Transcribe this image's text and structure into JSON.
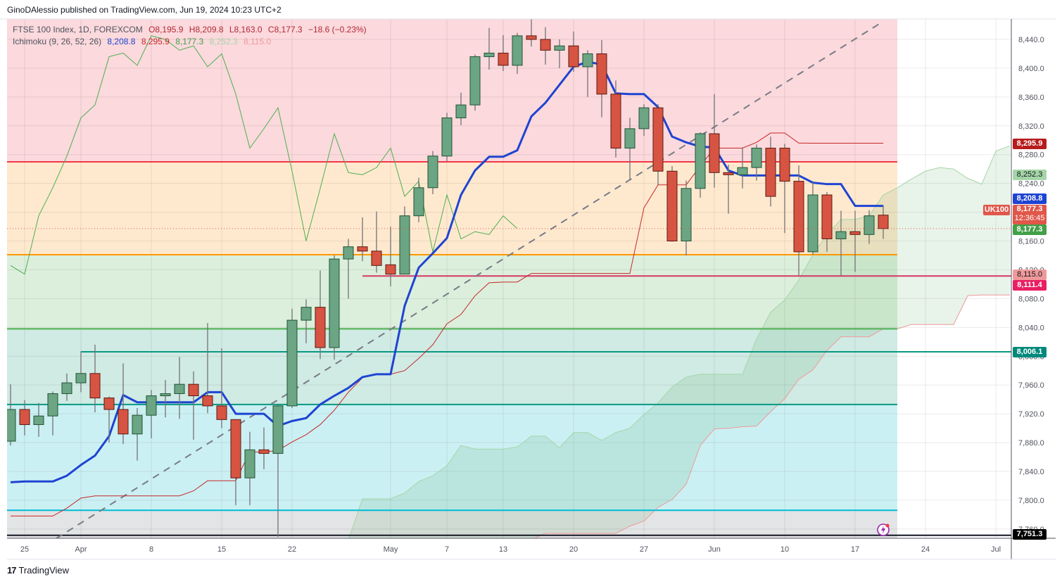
{
  "header": {
    "publisher_line": "GinoDAlessio published on TradingView.com, Jun 19, 2024 10:23 UTC+2"
  },
  "legend": {
    "symbol": "FTSE 100 Index, 1D, FOREXCOM",
    "open": "O8,195.9",
    "high": "H8,209.8",
    "low": "L8,163.0",
    "close": "C8,177.3",
    "change": "−18.6 (−0.23%)",
    "indicator": "Ichimoku (9, 26, 52, 26)",
    "values": [
      "8,208.8",
      "8,295.9",
      "8,177.3",
      "8,252.3",
      "8,115.0"
    ]
  },
  "colors": {
    "up": "#6ba583",
    "up_border": "#225437",
    "down": "#d75442",
    "down_border": "#5b1a13",
    "wick": "#737375",
    "tenkan": "#1e44d2",
    "kijun": "#c62828",
    "chikou": "#4caf50",
    "span_a": "#a5d6a7",
    "span_b": "#ef9a9a",
    "cloud": "rgba(67,160,71,0.12)"
  },
  "price_labels": {
    "kijun": "8,295.9",
    "span_a": "8,252.3",
    "tenkan": "8,208.8",
    "last": "8,177.3",
    "countdown": "12:36:45",
    "chikou": "8,177.3",
    "span_b": "8,115.0",
    "level_crimson": "8,111.4",
    "level_teal": "8,006.1",
    "level_black": "7,751.3",
    "symbol_tag": "UK100"
  },
  "footer": {
    "brand": "TradingView",
    "logo_mark": "17"
  },
  "chart_data": {
    "type": "candlestick",
    "title": "FTSE 100 Index, 1D, FOREXCOM",
    "ylim": [
      7740,
      8480
    ],
    "ohlc": [
      [
        7882,
        7961,
        7876,
        7926
      ],
      [
        7926,
        7939,
        7890,
        7905
      ],
      [
        7905,
        7935,
        7888,
        7917
      ],
      [
        7917,
        7951,
        7890,
        7948
      ],
      [
        7948,
        7976,
        7938,
        7963
      ],
      [
        7963,
        8007,
        7950,
        7976
      ],
      [
        7976,
        8016,
        7922,
        7942
      ],
      [
        7942,
        7944,
        7880,
        7926
      ],
      [
        7926,
        7990,
        7878,
        7892
      ],
      [
        7892,
        7928,
        7855,
        7918
      ],
      [
        7918,
        7953,
        7886,
        7945
      ],
      [
        7945,
        7967,
        7915,
        7948
      ],
      [
        7948,
        7999,
        7913,
        7961
      ],
      [
        7961,
        7979,
        7884,
        7945
      ],
      [
        7945,
        8046,
        7921,
        7931
      ],
      [
        7931,
        8011,
        7900,
        7912
      ],
      [
        7912,
        7912,
        7793,
        7831
      ],
      [
        7831,
        7895,
        7793,
        7870
      ],
      [
        7870,
        7901,
        7843,
        7865
      ],
      [
        7865,
        7933,
        7749,
        7931
      ],
      [
        7931,
        8066,
        7928,
        8050
      ],
      [
        8050,
        8079,
        8018,
        8068
      ],
      [
        8068,
        8119,
        7996,
        8012
      ],
      [
        8012,
        8140,
        7995,
        8135
      ],
      [
        8135,
        8163,
        8080,
        8152
      ],
      [
        8152,
        8193,
        8132,
        8146
      ],
      [
        8146,
        8201,
        8116,
        8126
      ],
      [
        8127,
        8180,
        8097,
        8114
      ],
      [
        8114,
        8208,
        8114,
        8195
      ],
      [
        8195,
        8248,
        8186,
        8234
      ],
      [
        8234,
        8285,
        8225,
        8278
      ],
      [
        8278,
        8338,
        8271,
        8331
      ],
      [
        8331,
        8366,
        8321,
        8349
      ],
      [
        8349,
        8419,
        8341,
        8416
      ],
      [
        8416,
        8456,
        8398,
        8421
      ],
      [
        8421,
        8446,
        8396,
        8404
      ],
      [
        8404,
        8449,
        8392,
        8445
      ],
      [
        8445,
        8468,
        8430,
        8440
      ],
      [
        8440,
        8457,
        8405,
        8425
      ],
      [
        8425,
        8440,
        8400,
        8431
      ],
      [
        8431,
        8451,
        8395,
        8402
      ],
      [
        8402,
        8425,
        8360,
        8420
      ],
      [
        8420,
        8439,
        8332,
        8364
      ],
      [
        8364,
        8383,
        8276,
        8289
      ],
      [
        8289,
        8331,
        8246,
        8316
      ],
      [
        8316,
        8350,
        8306,
        8345
      ],
      [
        8345,
        8350,
        8238,
        8257
      ],
      [
        8257,
        8264,
        8159,
        8160
      ],
      [
        8160,
        8244,
        8140,
        8233
      ],
      [
        8233,
        8311,
        8220,
        8309
      ],
      [
        8309,
        8364,
        8234,
        8255
      ],
      [
        8255,
        8266,
        8198,
        8252
      ],
      [
        8252,
        8290,
        8233,
        8262
      ],
      [
        8262,
        8294,
        8244,
        8289
      ],
      [
        8289,
        8305,
        8208,
        8222
      ],
      [
        8289,
        8295,
        8171,
        8243
      ],
      [
        8243,
        8265,
        8112,
        8145
      ],
      [
        8145,
        8243,
        8141,
        8224
      ],
      [
        8224,
        8228,
        8145,
        8163
      ],
      [
        8163,
        8202,
        8112,
        8173
      ],
      [
        8173,
        8202,
        8117,
        8169
      ],
      [
        8169,
        8203,
        8156,
        8195
      ],
      [
        8195.9,
        8209.8,
        8163.0,
        8177.3
      ]
    ],
    "ichimoku": {
      "displacement": 26,
      "tenkan": [
        7825,
        7826,
        7826,
        7826,
        7834,
        7849,
        7862,
        7889,
        7946,
        7936,
        7936,
        7936,
        7936,
        7936,
        7950,
        7950,
        7920,
        7920,
        7920,
        7903,
        7910,
        7914,
        7933,
        7945,
        7956,
        7971,
        7975,
        7975,
        8070,
        8123,
        8143,
        8164,
        8224,
        8258,
        8277,
        8277,
        8286,
        8333,
        8352,
        8377,
        8402,
        8409,
        8405,
        8365,
        8364,
        8364,
        8346,
        8305,
        8297,
        8291,
        8290,
        8258,
        8251,
        8251,
        8251,
        8251,
        8251,
        8241,
        8239,
        8239,
        8208.8,
        8208.8,
        8208.8
      ],
      "kijun": [
        7778,
        7778,
        7778,
        7778,
        7789,
        7803,
        7806,
        7806,
        7806,
        7806,
        7806,
        7806,
        7806,
        7813,
        7827,
        7827,
        7827,
        7867,
        7867,
        7869,
        7881,
        7891,
        7905,
        7925,
        7950,
        7970,
        7975,
        7975,
        7980,
        7997,
        8016,
        8045,
        8058,
        8084,
        8102,
        8103,
        8103,
        8115,
        8115,
        8115,
        8115,
        8115,
        8115,
        8115,
        8115,
        8206,
        8238,
        8238,
        8238,
        8264,
        8289,
        8289,
        8289,
        8297,
        8310,
        8310,
        8296,
        8295.9,
        8295.9,
        8295.9,
        8295.9,
        8295.9,
        8295.9
      ],
      "span_start_bar": 24,
      "span_a": [
        7745,
        7802,
        7802,
        7802,
        7810,
        7826,
        7834,
        7848,
        7876,
        7871,
        7871,
        7871,
        7874,
        7889,
        7889,
        7873,
        7894,
        7894,
        7883,
        7894,
        7900,
        7919,
        7935,
        7957,
        7971,
        7975,
        7975,
        7975,
        7975,
        8024,
        8061,
        8078,
        8106,
        8141,
        8169,
        8190,
        8190,
        8195,
        8224,
        8234,
        8246,
        8257,
        8262,
        8260,
        8247,
        8239,
        8285,
        8292
      ],
      "span_b": [
        7735,
        7735,
        7735,
        7735,
        7735,
        7735,
        7735,
        7735,
        7735,
        7735,
        7735,
        7735,
        7735,
        7745,
        7754,
        7754,
        7754,
        7754,
        7754,
        7754,
        7764,
        7771,
        7790,
        7801,
        7822,
        7876,
        7899,
        7900,
        7902,
        7903,
        7923,
        7941,
        7968,
        7981,
        8008,
        8027,
        8027,
        8027,
        8038,
        8038,
        8044,
        8044,
        8044,
        8044,
        8084,
        8085,
        8085,
        8085
      ]
    },
    "zones": [
      {
        "from": 8270,
        "to": 8480,
        "color": "#fbd9dd"
      },
      {
        "from": 8141,
        "to": 8270,
        "color": "#fee9cf"
      },
      {
        "from": 8038,
        "to": 8141,
        "color": "#dcefdc"
      },
      {
        "from": 7933,
        "to": 8038,
        "color": "#d0eae4"
      },
      {
        "from": 7786,
        "to": 7933,
        "color": "#cbf0f3"
      },
      {
        "from": 7735,
        "to": 7786,
        "color": "#e3e4e6"
      }
    ],
    "zones_end_bar": 63,
    "levels": [
      {
        "price": 8270,
        "color": "#f23645",
        "from_bar": -0.25,
        "to_bar": 63
      },
      {
        "price": 8141,
        "color": "#ff9800",
        "from_bar": -0.25,
        "to_bar": 63
      },
      {
        "price": 8111.4,
        "color": "#d63864",
        "from_bar": 25,
        "to_bar": 71.1
      },
      {
        "price": 8038,
        "color": "#4caf50",
        "from_bar": -0.25,
        "to_bar": 63
      },
      {
        "price": 8006.1,
        "color": "#089981",
        "from_bar": 5,
        "to_bar": 71.1
      },
      {
        "price": 7933,
        "color": "#089981",
        "from_bar": -0.25,
        "to_bar": 63
      },
      {
        "price": 7786,
        "color": "#00bcd4",
        "from_bar": -0.25,
        "to_bar": 63
      },
      {
        "price": 7751.3,
        "color": "#131722",
        "from_bar": -0.25,
        "to_bar": 71.1
      }
    ],
    "trendline": [
      {
        "bar": 3.25,
        "price": 7747
      },
      {
        "bar": 62,
        "price": 8465
      }
    ],
    "current_price": 8177.3,
    "y_ticks": [
      "8,440.0",
      "8,400.0",
      "8,360.0",
      "8,320.0",
      "8,280.0",
      "8,240.0",
      "8,200.0",
      "8,160.0",
      "8,120.0",
      "8,080.0",
      "8,040.0",
      "8,000.0",
      "7,960.0",
      "7,920.0",
      "7,880.0",
      "7,840.0",
      "7,800.0",
      "7,760.0"
    ],
    "y_tick_values": [
      8440,
      8400,
      8360,
      8320,
      8280,
      8240,
      8200,
      8160,
      8120,
      8080,
      8040,
      8000,
      7960,
      7920,
      7880,
      7840,
      7800,
      7760
    ],
    "x_labels": [
      {
        "bar": 1,
        "label": "25"
      },
      {
        "bar": 5,
        "label": "Apr"
      },
      {
        "bar": 10,
        "label": "8"
      },
      {
        "bar": 15,
        "label": "15"
      },
      {
        "bar": 20,
        "label": "22"
      },
      {
        "bar": 27,
        "label": "May"
      },
      {
        "bar": 31,
        "label": "7"
      },
      {
        "bar": 35,
        "label": "13"
      },
      {
        "bar": 40,
        "label": "20"
      },
      {
        "bar": 45,
        "label": "27"
      },
      {
        "bar": 50,
        "label": "Jun"
      },
      {
        "bar": 55,
        "label": "10"
      },
      {
        "bar": 60,
        "label": "17"
      },
      {
        "bar": 65,
        "label": "24"
      },
      {
        "bar": 70,
        "label": "Jul"
      }
    ]
  }
}
